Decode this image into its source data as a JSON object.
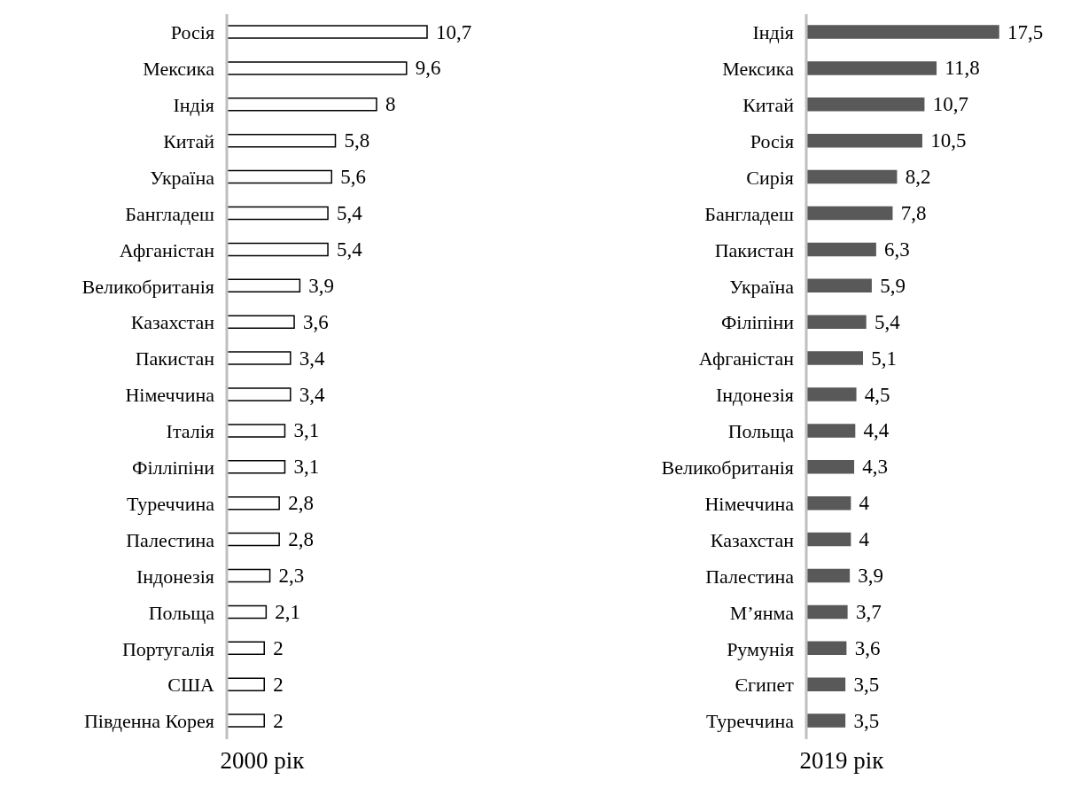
{
  "chart_data": [
    {
      "type": "bar",
      "orientation": "horizontal",
      "title": "2000 рік",
      "color": "#ffffff",
      "legend": false,
      "grid": false,
      "categories": [
        "Росія",
        "Мексика",
        "Індія",
        "Китай",
        "Україна",
        "Бангладеш",
        "Афганістан",
        "Великобританія",
        "Казахстан",
        "Пакистан",
        "Німеччина",
        "Італія",
        "Філліпіни",
        "Туреччина",
        "Палестина",
        "Індонезія",
        "Польща",
        "Португалія",
        "США",
        "Південна Корея"
      ],
      "values": [
        10.7,
        9.6,
        8,
        5.8,
        5.6,
        5.4,
        5.4,
        3.9,
        3.6,
        3.4,
        3.4,
        3.1,
        3.1,
        2.8,
        2.8,
        2.3,
        2.1,
        2,
        2,
        2
      ],
      "value_labels": [
        "10,7",
        "9,6",
        "8",
        "5,8",
        "5,6",
        "5,4",
        "5,4",
        "3,9",
        "3,6",
        "3,4",
        "3,4",
        "3,1",
        "3,1",
        "2,8",
        "2,8",
        "2,3",
        "2,1",
        "2",
        "2",
        "2"
      ]
    },
    {
      "type": "bar",
      "orientation": "horizontal",
      "title": "2019 рік",
      "color": "#595959",
      "legend": false,
      "grid": false,
      "categories": [
        "Індія",
        "Мексика",
        "Китай",
        "Росія",
        "Сирія",
        "Бангладеш",
        "Пакистан",
        "Україна",
        "Філіпіни",
        "Афганістан",
        "Індонезія",
        "Польща",
        "Великобританія",
        "Німеччина",
        "Казахстан",
        "Палестина",
        "М’янма",
        "Румунія",
        "Єгипет",
        "Туреччина"
      ],
      "values": [
        17.5,
        11.8,
        10.7,
        10.5,
        8.2,
        7.8,
        6.3,
        5.9,
        5.4,
        5.1,
        4.5,
        4.4,
        4.3,
        4,
        4,
        3.9,
        3.7,
        3.6,
        3.5,
        3.5
      ],
      "value_labels": [
        "17,5",
        "11,8",
        "10,7",
        "10,5",
        "8,2",
        "7,8",
        "6,3",
        "5,9",
        "5,4",
        "5,1",
        "4,5",
        "4,4",
        "4,3",
        "4",
        "4",
        "3,9",
        "3,7",
        "3,6",
        "3,5",
        "3,5"
      ]
    }
  ]
}
